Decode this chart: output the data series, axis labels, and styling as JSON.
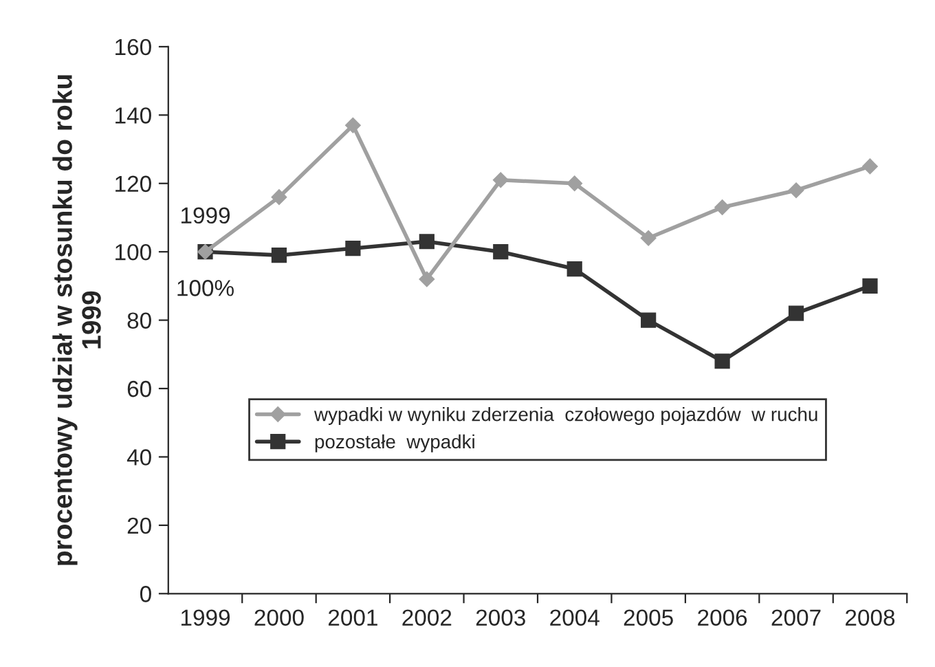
{
  "chart_data": {
    "type": "line",
    "ylabel": "procentowy udział w stosunku do roku\n1999",
    "categories": [
      "1999",
      "2000",
      "2001",
      "2002",
      "2003",
      "2004",
      "2005",
      "2006",
      "2007",
      "2008"
    ],
    "series": [
      {
        "name": "wypadki w wyniku zderzenia  czołowego pojazdów  w ruchu",
        "color": "#a0a0a0",
        "marker": "diamond",
        "values": [
          100,
          116,
          137,
          92,
          121,
          120,
          104,
          113,
          118,
          125
        ]
      },
      {
        "name": "pozostałe  wypadki",
        "color": "#333333",
        "marker": "square",
        "values": [
          100,
          99,
          101,
          103,
          100,
          95,
          80,
          68,
          82,
          90
        ]
      }
    ],
    "annotations": [
      {
        "text": "1999",
        "x": "1999",
        "y": 100
      },
      {
        "text": "100%",
        "x": "1999",
        "y": 100
      }
    ],
    "ylim": [
      0,
      160
    ],
    "yticks": [
      0,
      20,
      40,
      60,
      80,
      100,
      120,
      140,
      160
    ],
    "grid": false,
    "legend": "center"
  }
}
